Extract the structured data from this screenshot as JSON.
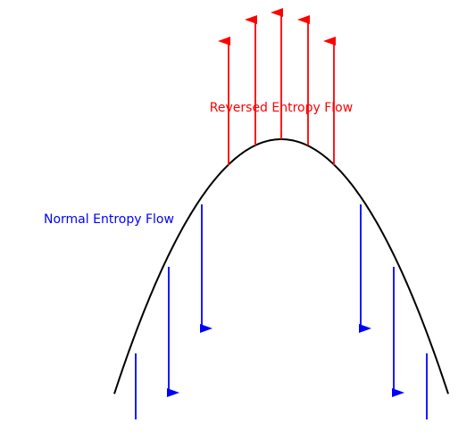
{
  "labels": {
    "reversed": "Reversed Entropy Flow",
    "normal": "Normal Entropy Flow"
  },
  "colors": {
    "curve": "#000000",
    "reversed": "#ff0000",
    "normal": "#0000ff"
  }
}
